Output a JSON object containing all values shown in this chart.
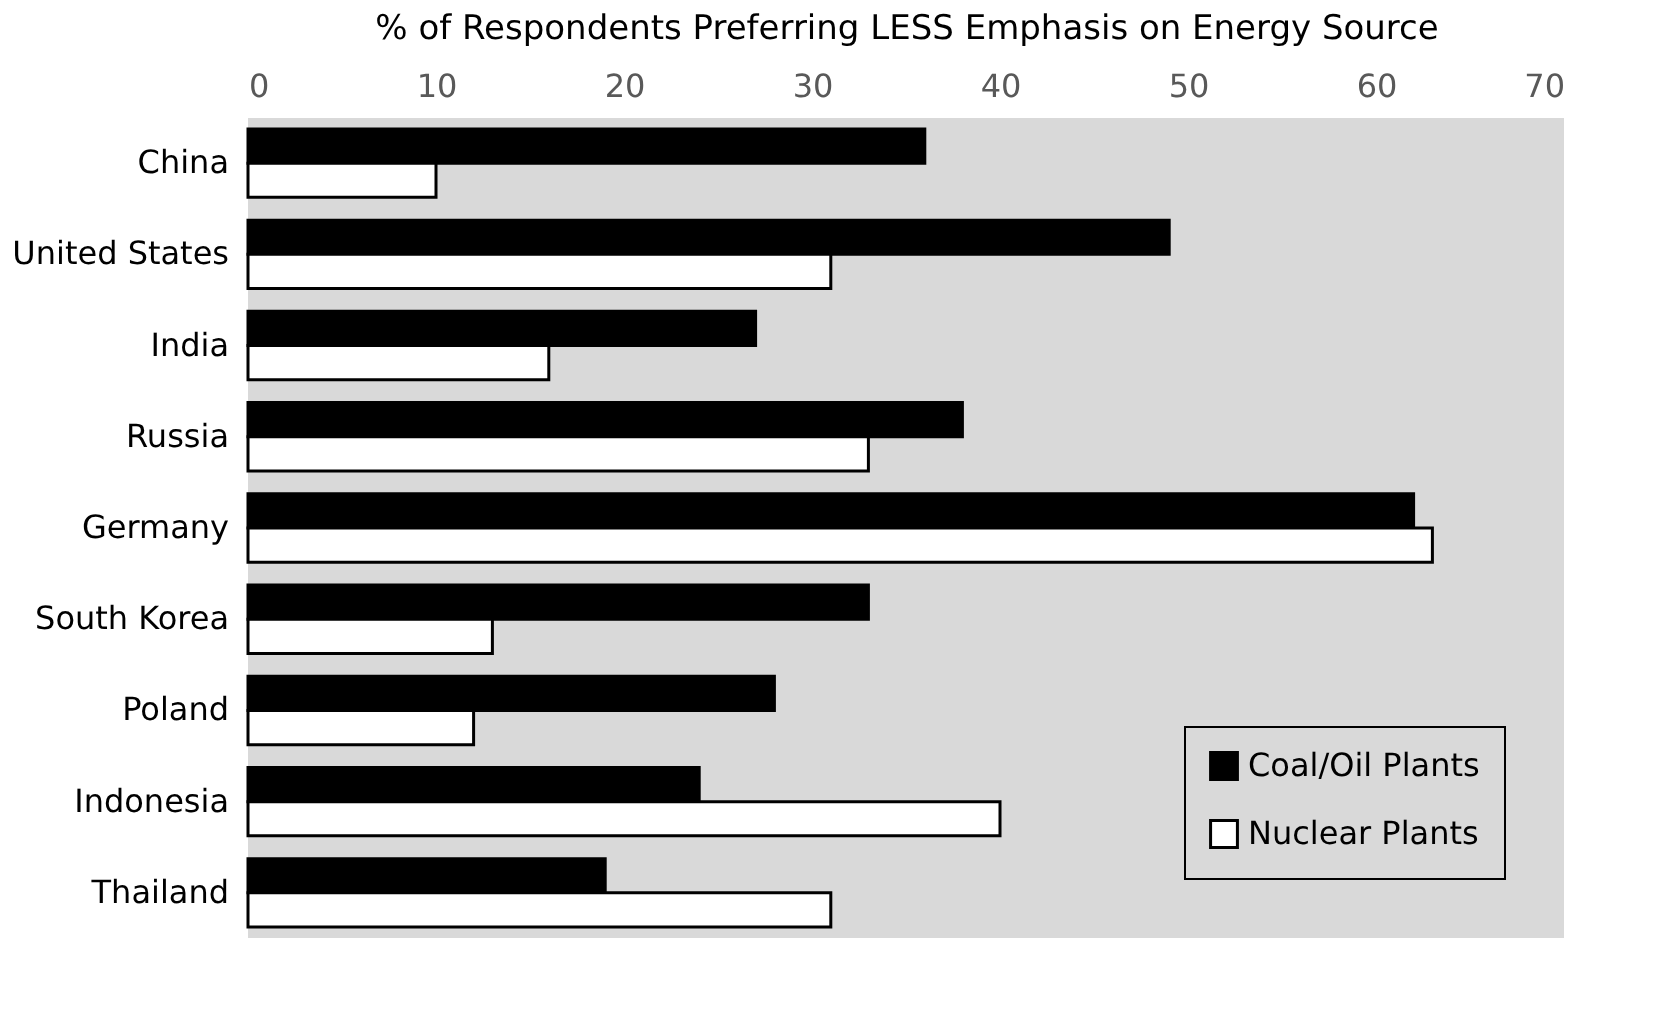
{
  "chart_data": {
    "type": "bar",
    "orientation": "horizontal",
    "xlabel": "% of Respondents Preferring LESS Emphasis on Energy Source",
    "categories": [
      "China",
      "United States",
      "India",
      "Russia",
      "Germany",
      "South Korea",
      "Poland",
      "Indonesia",
      "Thailand"
    ],
    "series": [
      {
        "name": "Coal/Oil Plants",
        "color": "#000000",
        "values": [
          36,
          49,
          27,
          38,
          62,
          33,
          28,
          24,
          19
        ]
      },
      {
        "name": "Nuclear Plants",
        "color": "#ffffff",
        "values": [
          10,
          31,
          16,
          33,
          63,
          13,
          12,
          40,
          31
        ]
      }
    ],
    "xlim": [
      0,
      70
    ],
    "xticks": [
      0,
      10,
      20,
      30,
      40,
      50,
      60,
      70
    ],
    "grid": false,
    "legend": "bottom right"
  }
}
